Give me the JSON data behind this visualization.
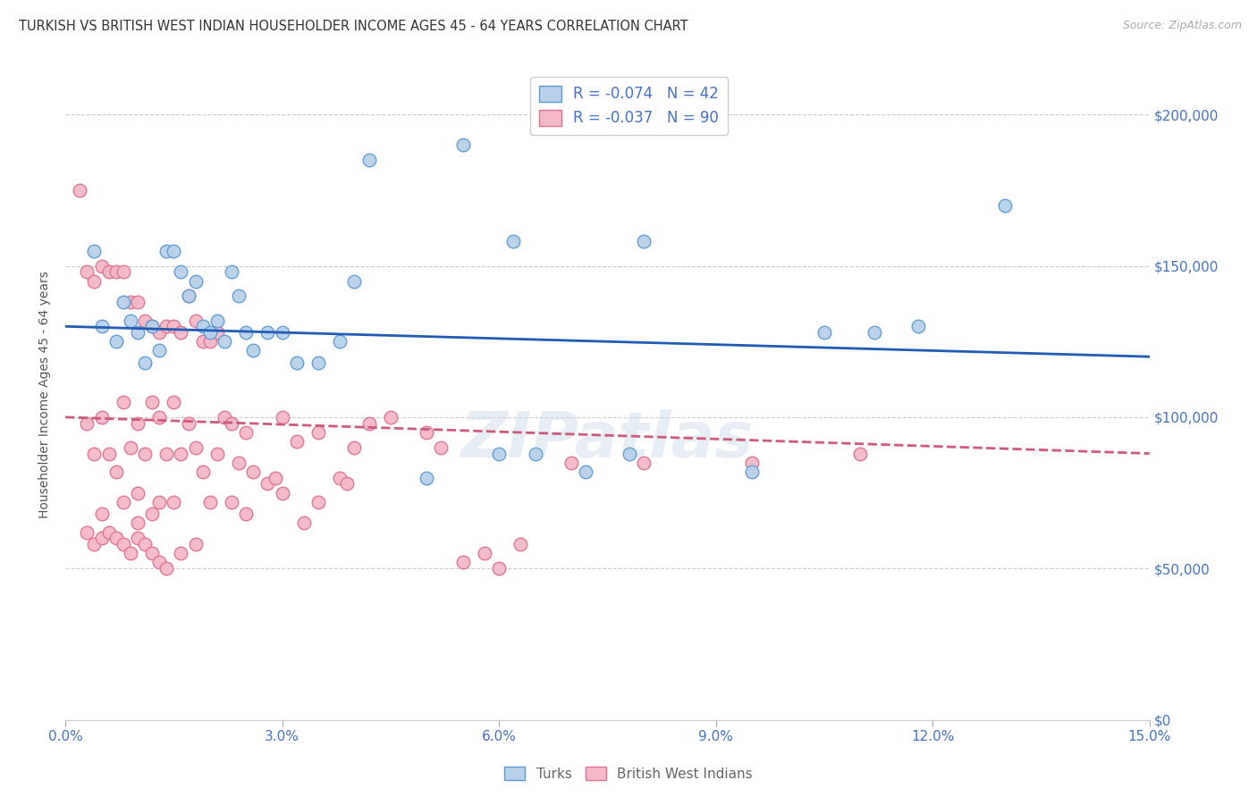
{
  "title": "TURKISH VS BRITISH WEST INDIAN HOUSEHOLDER INCOME AGES 45 - 64 YEARS CORRELATION CHART",
  "source": "Source: ZipAtlas.com",
  "xlabel_vals": [
    0.0,
    3.0,
    6.0,
    9.0,
    12.0,
    15.0
  ],
  "ylabel": "Householder Income Ages 45 - 64 years",
  "ylabel_vals": [
    0,
    50000,
    100000,
    150000,
    200000
  ],
  "xmin": 0.0,
  "xmax": 15.0,
  "ymin": 0,
  "ymax": 215000,
  "watermark": "ZIPatlas",
  "legend_turks": "R = -0.074   N = 42",
  "legend_bwi": "R = -0.037   N = 90",
  "turk_color": "#b8d0ea",
  "turk_edge_color": "#5b9bd5",
  "bwi_color": "#f4b8c8",
  "bwi_edge_color": "#e07090",
  "trend_turk_color": "#1f5cb5",
  "trend_bwi_color": "#d05878",
  "turks_x": [
    0.4,
    0.5,
    0.7,
    0.8,
    0.9,
    1.0,
    1.1,
    1.2,
    1.3,
    1.4,
    1.5,
    1.6,
    1.7,
    1.8,
    1.9,
    2.0,
    2.1,
    2.2,
    2.3,
    2.4,
    2.5,
    2.6,
    2.8,
    3.0,
    3.2,
    3.5,
    4.0,
    4.2,
    5.5,
    6.2,
    6.5,
    7.2,
    7.8,
    8.0,
    9.5,
    10.5,
    11.2,
    11.8,
    13.0,
    6.0,
    3.8,
    5.0
  ],
  "turks_y": [
    155000,
    130000,
    125000,
    138000,
    132000,
    128000,
    118000,
    130000,
    122000,
    155000,
    155000,
    148000,
    140000,
    145000,
    130000,
    128000,
    132000,
    125000,
    148000,
    140000,
    128000,
    122000,
    128000,
    128000,
    118000,
    118000,
    145000,
    185000,
    190000,
    158000,
    88000,
    82000,
    88000,
    158000,
    82000,
    128000,
    128000,
    130000,
    170000,
    88000,
    125000,
    80000
  ],
  "bwi_x": [
    0.2,
    0.3,
    0.3,
    0.4,
    0.4,
    0.5,
    0.5,
    0.5,
    0.6,
    0.6,
    0.7,
    0.7,
    0.8,
    0.8,
    0.8,
    0.9,
    0.9,
    1.0,
    1.0,
    1.0,
    1.0,
    1.1,
    1.1,
    1.2,
    1.2,
    1.2,
    1.3,
    1.3,
    1.3,
    1.4,
    1.4,
    1.5,
    1.5,
    1.5,
    1.6,
    1.6,
    1.7,
    1.7,
    1.8,
    1.8,
    1.9,
    1.9,
    2.0,
    2.0,
    2.1,
    2.1,
    2.2,
    2.3,
    2.3,
    2.4,
    2.5,
    2.5,
    2.6,
    2.8,
    2.9,
    3.0,
    3.0,
    3.2,
    3.3,
    3.5,
    3.5,
    3.8,
    3.9,
    4.0,
    4.2,
    4.5,
    5.0,
    5.2,
    5.5,
    5.8,
    6.0,
    6.3,
    7.0,
    8.0,
    9.5,
    11.0,
    0.3,
    0.4,
    0.5,
    0.6,
    0.7,
    0.8,
    0.9,
    1.0,
    1.1,
    1.2,
    1.3,
    1.4,
    1.6,
    1.8
  ],
  "bwi_y": [
    175000,
    148000,
    98000,
    145000,
    88000,
    150000,
    100000,
    68000,
    148000,
    88000,
    148000,
    82000,
    148000,
    105000,
    72000,
    138000,
    90000,
    138000,
    98000,
    75000,
    65000,
    132000,
    88000,
    130000,
    105000,
    68000,
    128000,
    100000,
    72000,
    130000,
    88000,
    130000,
    105000,
    72000,
    128000,
    88000,
    140000,
    98000,
    132000,
    90000,
    125000,
    82000,
    125000,
    72000,
    128000,
    88000,
    100000,
    98000,
    72000,
    85000,
    95000,
    68000,
    82000,
    78000,
    80000,
    100000,
    75000,
    92000,
    65000,
    95000,
    72000,
    80000,
    78000,
    90000,
    98000,
    100000,
    95000,
    90000,
    52000,
    55000,
    50000,
    58000,
    85000,
    85000,
    85000,
    88000,
    62000,
    58000,
    60000,
    62000,
    60000,
    58000,
    55000,
    60000,
    58000,
    55000,
    52000,
    50000,
    55000,
    58000
  ]
}
